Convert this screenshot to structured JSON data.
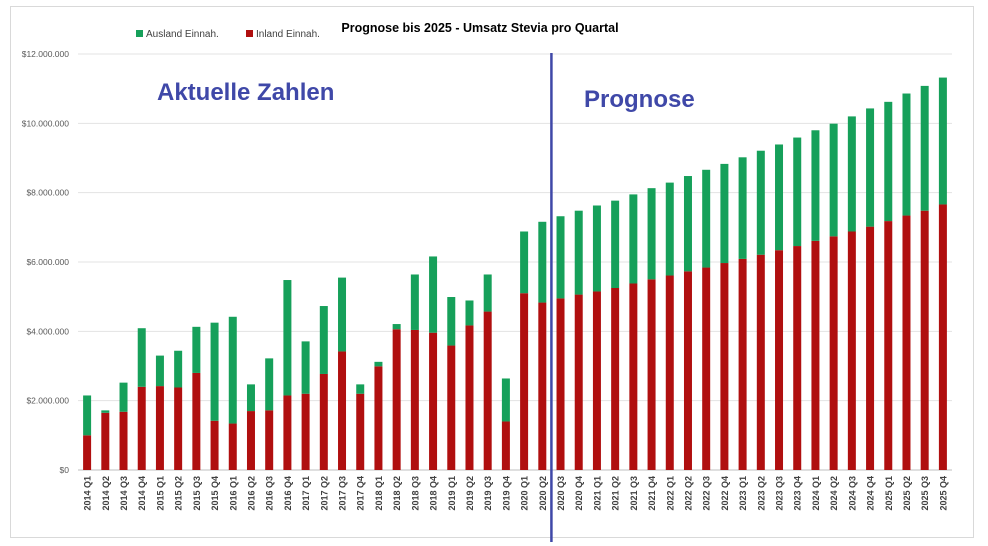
{
  "chart_data": {
    "type": "bar",
    "stacked": true,
    "title": "Prognose bis 2025 - Umsatz Stevia pro Quartal",
    "xlabel": "",
    "ylabel": "",
    "ylim": [
      0,
      12000000
    ],
    "yticks": [
      0,
      2000000,
      4000000,
      6000000,
      8000000,
      10000000,
      12000000
    ],
    "ytick_labels": [
      "$0",
      "$2.000.000",
      "$4.000.000",
      "$6.000.000",
      "$8.000.000",
      "$10.000.000",
      "$12.000.000"
    ],
    "grid": true,
    "legend_position": "top-left",
    "categories": [
      "2014 Q1",
      "2014 Q2",
      "2014 Q3",
      "2014 Q4",
      "2015 Q1",
      "2015 Q2",
      "2015 Q3",
      "2015 Q4",
      "2016 Q1",
      "2016 Q2",
      "2016 Q3",
      "2016 Q4",
      "2017 Q1",
      "2017 Q2",
      "2017 Q3",
      "2017 Q4",
      "2018 Q1",
      "2018 Q2",
      "2018 Q3",
      "2018 Q4",
      "2019 Q1",
      "2019 Q2",
      "2019 Q3",
      "2019 Q4",
      "2020 Q1",
      "2020 Q2",
      "2020 Q3",
      "2020 Q4",
      "2021 Q1",
      "2021 Q2",
      "2021 Q3",
      "2021 Q4",
      "2022 Q1",
      "2022 Q2",
      "2022 Q3",
      "2022 Q4",
      "2023 Q1",
      "2023 Q2",
      "2023 Q3",
      "2023 Q4",
      "2024 Q1",
      "2024 Q2",
      "2024 Q3",
      "2024 Q4",
      "2025 Q1",
      "2025 Q2",
      "2025 Q3",
      "2025 Q4"
    ],
    "series": [
      {
        "name": "Inland Einnah.",
        "color": "#b00f0f",
        "values": [
          1000000,
          1650000,
          1680000,
          2400000,
          2420000,
          2380000,
          2800000,
          1420000,
          1340000,
          1700000,
          1720000,
          2150000,
          2200000,
          2770000,
          3420000,
          2200000,
          2990000,
          4060000,
          4040000,
          3960000,
          3590000,
          4170000,
          4570000,
          1400000,
          5100000,
          4830000,
          4950000,
          5060000,
          5150000,
          5250000,
          5380000,
          5500000,
          5610000,
          5730000,
          5840000,
          5970000,
          6090000,
          6210000,
          6340000,
          6460000,
          6610000,
          6740000,
          6880000,
          7020000,
          7180000,
          7340000,
          7480000,
          7660000
        ]
      },
      {
        "name": "Ausland Einnah.",
        "color": "#16a05a",
        "values": [
          1150000,
          70000,
          840000,
          1690000,
          880000,
          1060000,
          1330000,
          2830000,
          3080000,
          770000,
          1500000,
          3330000,
          1510000,
          1960000,
          2130000,
          270000,
          130000,
          150000,
          1600000,
          2200000,
          1400000,
          720000,
          1070000,
          1240000,
          1780000,
          2330000,
          2370000,
          2420000,
          2480000,
          2520000,
          2570000,
          2630000,
          2680000,
          2750000,
          2820000,
          2860000,
          2930000,
          3000000,
          3050000,
          3130000,
          3190000,
          3250000,
          3320000,
          3410000,
          3440000,
          3520000,
          3600000,
          3660000
        ]
      }
    ],
    "annotations": [
      "Aktuelle Zahlen",
      "Prognose"
    ],
    "divider_after_category": "2020 Q2"
  },
  "colors": {
    "inland": "#b00f0f",
    "ausland": "#16a05a",
    "annotation": "#3f48a8",
    "divider": "#3f48a8"
  }
}
